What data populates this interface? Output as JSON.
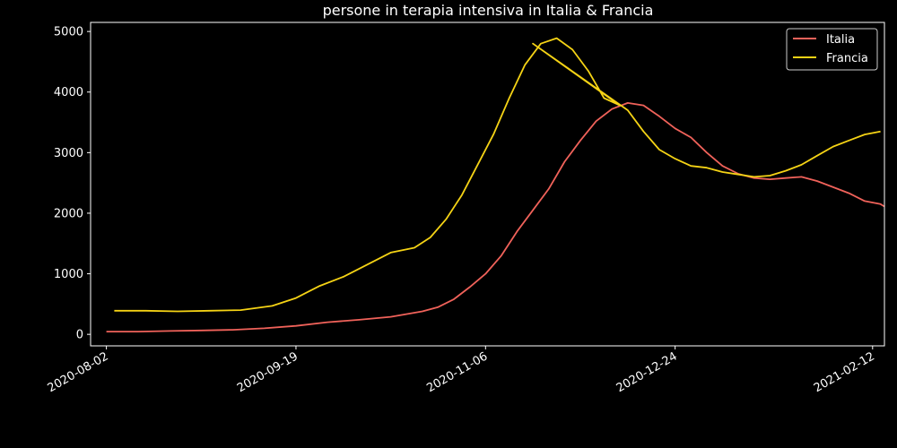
{
  "chart_data": {
    "type": "line",
    "title": "persone in terapia intensiva in Italia & Francia",
    "xlabel": "",
    "ylabel": "",
    "xlim": [
      "2020-07-29",
      "2021-02-15"
    ],
    "ylim": [
      -190,
      5150
    ],
    "yticks": [
      0,
      1000,
      2000,
      3000,
      4000,
      5000
    ],
    "xticks": [
      "2020-08-02",
      "2020-09-19",
      "2020-11-06",
      "2020-12-24",
      "2021-02-12"
    ],
    "grid": false,
    "legend": "top-right",
    "background": "#000000",
    "series": [
      {
        "name": "Italia",
        "color": "#f0625a",
        "points": [
          [
            "2020-08-02",
            45
          ],
          [
            "2020-08-10",
            45
          ],
          [
            "2020-08-18",
            55
          ],
          [
            "2020-08-26",
            65
          ],
          [
            "2020-09-03",
            75
          ],
          [
            "2020-09-11",
            100
          ],
          [
            "2020-09-19",
            140
          ],
          [
            "2020-09-27",
            200
          ],
          [
            "2020-10-05",
            240
          ],
          [
            "2020-10-13",
            290
          ],
          [
            "2020-10-21",
            380
          ],
          [
            "2020-10-25",
            450
          ],
          [
            "2020-10-29",
            580
          ],
          [
            "2020-11-02",
            780
          ],
          [
            "2020-11-06",
            1000
          ],
          [
            "2020-11-10",
            1300
          ],
          [
            "2020-11-14",
            1700
          ],
          [
            "2020-11-18",
            2050
          ],
          [
            "2020-11-22",
            2400
          ],
          [
            "2020-11-26",
            2850
          ],
          [
            "2020-11-30",
            3200
          ],
          [
            "2020-12-04",
            3520
          ],
          [
            "2020-12-08",
            3720
          ],
          [
            "2020-12-12",
            3820
          ],
          [
            "2020-12-16",
            3780
          ],
          [
            "2020-12-20",
            3600
          ],
          [
            "2020-12-24",
            3400
          ],
          [
            "2020-12-28",
            3250
          ],
          [
            "2021-01-01",
            3000
          ],
          [
            "2021-01-05",
            2780
          ],
          [
            "2021-01-09",
            2650
          ],
          [
            "2021-01-13",
            2580
          ],
          [
            "2021-01-17",
            2560
          ],
          [
            "2021-01-21",
            2580
          ],
          [
            "2021-01-25",
            2600
          ],
          [
            "2021-01-29",
            2530
          ],
          [
            "2021-02-02",
            2430
          ],
          [
            "2021-02-06",
            2330
          ],
          [
            "2021-02-10",
            2200
          ],
          [
            "2021-02-14",
            2150
          ],
          [
            "2021-02-16",
            2070
          ]
        ]
      },
      {
        "name": "Francia",
        "color": "#f5d315",
        "points": [
          [
            "2020-08-04",
            390
          ],
          [
            "2020-08-12",
            390
          ],
          [
            "2020-08-20",
            380
          ],
          [
            "2020-08-28",
            390
          ],
          [
            "2020-09-05",
            400
          ],
          [
            "2020-09-13",
            470
          ],
          [
            "2020-09-19",
            600
          ],
          [
            "2020-09-25",
            800
          ],
          [
            "2020-10-01",
            950
          ],
          [
            "2020-10-07",
            1150
          ],
          [
            "2020-10-13",
            1350
          ],
          [
            "2020-10-19",
            1430
          ],
          [
            "2020-10-23",
            1600
          ],
          [
            "2020-10-27",
            1900
          ],
          [
            "2020-10-31",
            2300
          ],
          [
            "2020-11-04",
            2800
          ],
          [
            "2020-11-08",
            3300
          ],
          [
            "2020-11-12",
            3900
          ],
          [
            "2020-11-16",
            4450
          ],
          [
            "2020-11-20",
            4800
          ],
          [
            "2020-11-24",
            4890
          ],
          [
            "2020-11-28",
            4700
          ],
          [
            "2020-12-02",
            4350
          ],
          [
            "2020-12-06",
            3900
          ],
          [
            "2020-12-10",
            3780
          ],
          [
            "2020-11-18",
            4800
          ],
          [
            "2020-12-12",
            3700
          ],
          [
            "2020-12-16",
            3350
          ],
          [
            "2020-12-20",
            3050
          ],
          [
            "2020-12-24",
            2900
          ],
          [
            "2020-12-28",
            2780
          ],
          [
            "2021-01-01",
            2750
          ],
          [
            "2021-01-05",
            2680
          ],
          [
            "2021-01-09",
            2640
          ],
          [
            "2021-01-13",
            2600
          ],
          [
            "2021-01-17",
            2620
          ],
          [
            "2021-01-21",
            2700
          ],
          [
            "2021-01-25",
            2800
          ],
          [
            "2021-01-29",
            2950
          ],
          [
            "2021-02-02",
            3100
          ],
          [
            "2021-02-06",
            3200
          ],
          [
            "2021-02-10",
            3300
          ],
          [
            "2021-02-14",
            3350
          ]
        ]
      }
    ]
  }
}
